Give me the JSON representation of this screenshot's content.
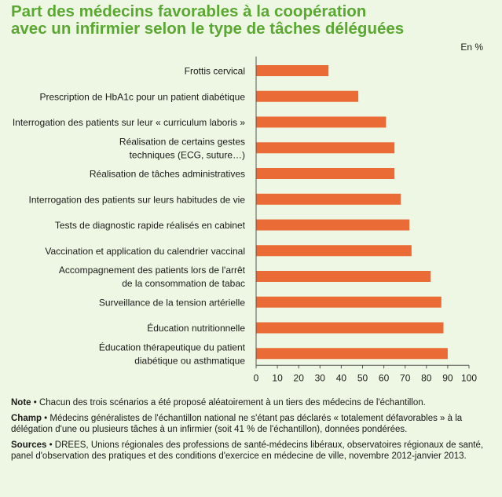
{
  "title_line1": "Part des médecins favorables à la coopération",
  "title_line2": "avec un infirmier selon le type de tâches déléguées",
  "colors": {
    "title": "#5aa832",
    "bar": "#ea6b35",
    "background": "#eef7e3"
  },
  "chart_data": {
    "type": "bar",
    "orientation": "horizontal",
    "unit_label": "En %",
    "categories": [
      [
        "Frottis cervical"
      ],
      [
        "Prescription de HbA1c pour un patient diabétique"
      ],
      [
        "Interrogation des patients sur leur « curriculum laboris »"
      ],
      [
        "Réalisation de certains gestes",
        "techniques (ECG, suture…)"
      ],
      [
        "Réalisation de tâches administratives"
      ],
      [
        "Interrogation des patients sur leurs habitudes de vie"
      ],
      [
        "Tests de diagnostic rapide réalisés en cabinet"
      ],
      [
        "Vaccination et application du calendrier vaccinal"
      ],
      [
        "Accompagnement des patients lors de l'arrêt",
        "de la consommation de tabac"
      ],
      [
        "Surveillance de la tension artérielle"
      ],
      [
        "Éducation nutritionnelle"
      ],
      [
        "Éducation thérapeutique du patient",
        "diabétique ou asthmatique"
      ]
    ],
    "values": [
      34,
      48,
      61,
      65,
      65,
      68,
      72,
      73,
      82,
      87,
      88,
      90
    ],
    "xlim": [
      0,
      100
    ],
    "xticks": [
      0,
      10,
      20,
      30,
      40,
      50,
      60,
      70,
      80,
      90,
      100
    ],
    "grid": false
  },
  "notes": {
    "note_label": "Note",
    "note_text": " • Chacun des trois scénarios a été proposé aléatoirement à un tiers des médecins de l'échantillon.",
    "champ_label": "Champ",
    "champ_text": " • Médecins généralistes de l'échantillon national ne s'étant pas déclarés « totalement défavorables » à la délégation d'une ou plusieurs tâches à un infirmier (soit 41 % de l'échantillon), données pondérées.",
    "sources_label": "Sources",
    "sources_text": " • DREES, Unions régionales des professions de santé-médecins libéraux, observatoires régionaux de santé, panel d'observation des pratiques et des conditions d'exercice en médecine de ville, novembre 2012-janvier 2013."
  }
}
